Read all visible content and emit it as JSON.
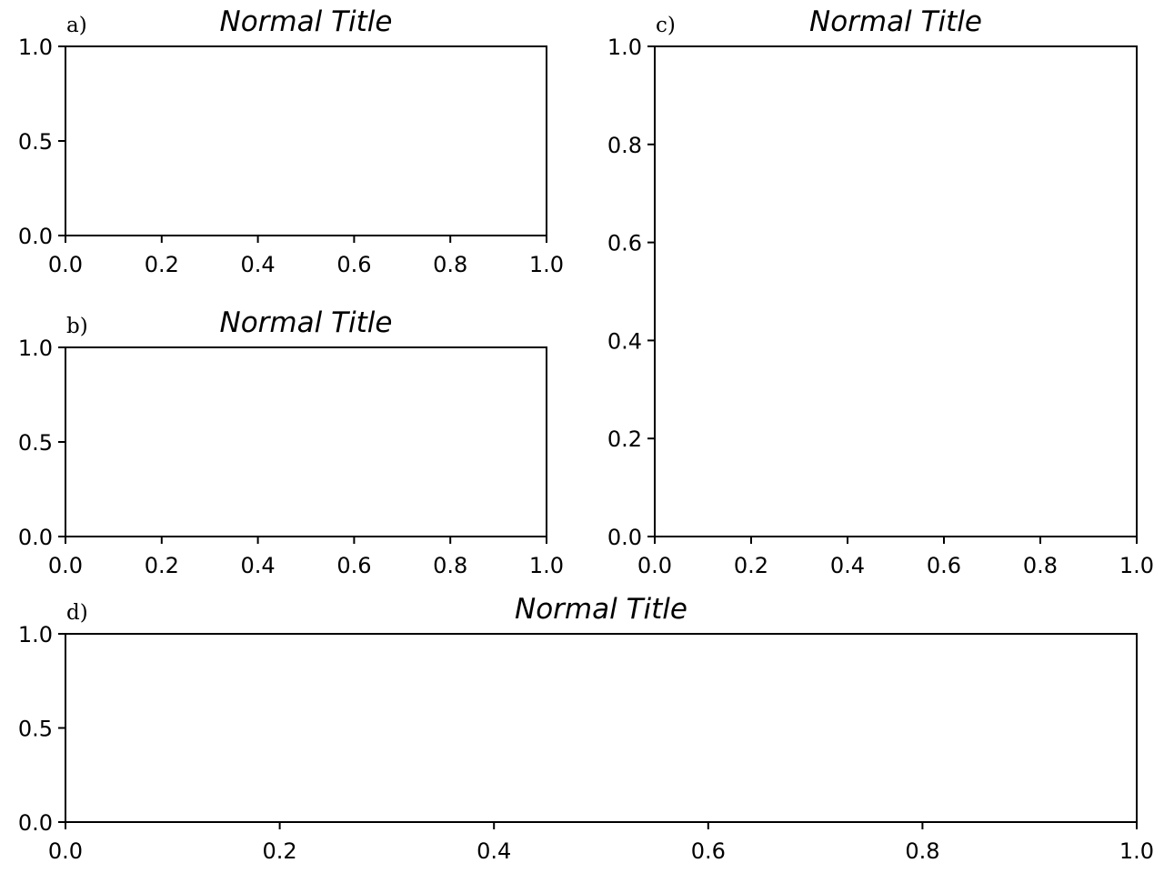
{
  "chart_data": [
    {
      "panel": "a)",
      "type": "line",
      "title": "Normal Title",
      "xlabel": "",
      "ylabel": "",
      "xlim": [
        0.0,
        1.0
      ],
      "ylim": [
        0.0,
        1.0
      ],
      "xticks": [
        "0.0",
        "0.2",
        "0.4",
        "0.6",
        "0.8",
        "1.0"
      ],
      "yticks": [
        "0.0",
        "0.5",
        "1.0"
      ],
      "series": [],
      "grid": false
    },
    {
      "panel": "b)",
      "type": "line",
      "title": "Normal Title",
      "xlabel": "",
      "ylabel": "",
      "xlim": [
        0.0,
        1.0
      ],
      "ylim": [
        0.0,
        1.0
      ],
      "xticks": [
        "0.0",
        "0.2",
        "0.4",
        "0.6",
        "0.8",
        "1.0"
      ],
      "yticks": [
        "0.0",
        "0.5",
        "1.0"
      ],
      "series": [],
      "grid": false
    },
    {
      "panel": "c)",
      "type": "line",
      "title": "Normal Title",
      "xlabel": "",
      "ylabel": "",
      "xlim": [
        0.0,
        1.0
      ],
      "ylim": [
        0.0,
        1.0
      ],
      "xticks": [
        "0.0",
        "0.2",
        "0.4",
        "0.6",
        "0.8",
        "1.0"
      ],
      "yticks": [
        "0.0",
        "0.2",
        "0.4",
        "0.6",
        "0.8",
        "1.0"
      ],
      "series": [],
      "grid": false
    },
    {
      "panel": "d)",
      "type": "line",
      "title": "Normal Title",
      "xlabel": "",
      "ylabel": "",
      "xlim": [
        0.0,
        1.0
      ],
      "ylim": [
        0.0,
        1.0
      ],
      "xticks": [
        "0.0",
        "0.2",
        "0.4",
        "0.6",
        "0.8",
        "1.0"
      ],
      "yticks": [
        "0.0",
        "0.5",
        "1.0"
      ],
      "series": [],
      "grid": false
    }
  ]
}
